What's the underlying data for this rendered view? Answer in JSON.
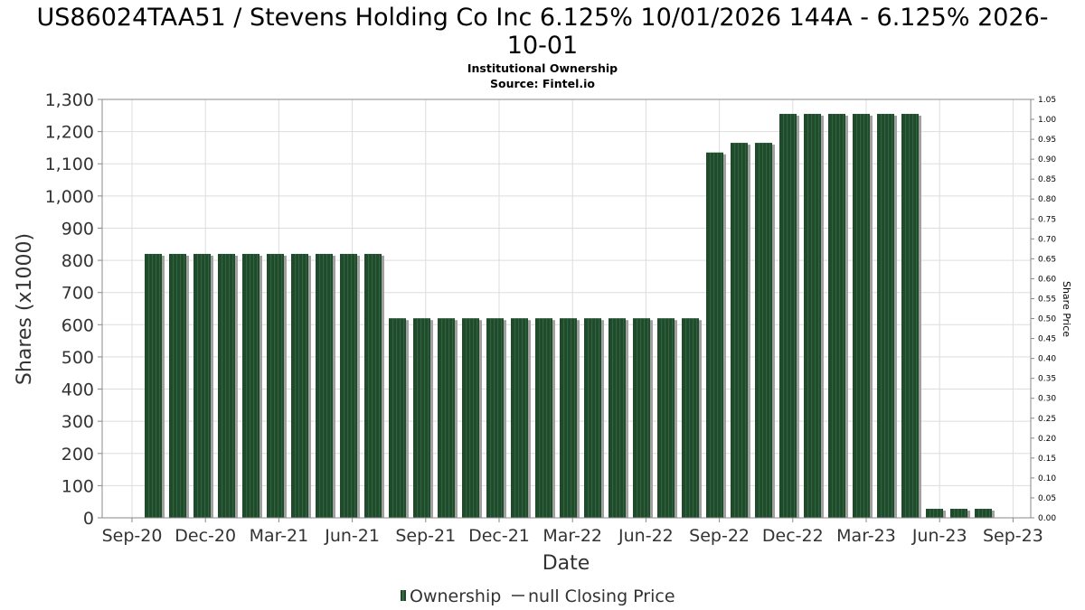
{
  "title_line1": "US86024TAA51 / Stevens Holding Co Inc 6.125% 10/01/2026 144A - 6.125% 2026-",
  "title_line2": "10-01",
  "subtitle_line1": "Institutional Ownership",
  "subtitle_line2": "Source: Fintel.io",
  "legend": {
    "ownership": "Ownership",
    "price": "null Closing Price"
  },
  "colors": {
    "bar": "#1f4a2b",
    "bar_highlight": "#3d7a4e",
    "bar_shadow": "#a0a0a0",
    "grid": "#dddddd",
    "frame": "#888888"
  },
  "chart_data": {
    "type": "bar",
    "xlabel": "Date",
    "ylabel": "Shares (x1000)",
    "y2label": "Share Price",
    "ylim": [
      0,
      1300
    ],
    "y2lim": [
      0,
      1.05
    ],
    "yticks": [
      0,
      100,
      200,
      300,
      400,
      500,
      600,
      700,
      800,
      900,
      1000,
      1100,
      1200,
      1300
    ],
    "ytick_labels": [
      "0",
      "100",
      "200",
      "300",
      "400",
      "500",
      "600",
      "700",
      "800",
      "900",
      "1,000",
      "1,100",
      "1,200",
      "1,300"
    ],
    "y2ticks": [
      0.0,
      0.05,
      0.1,
      0.15,
      0.2,
      0.25,
      0.3,
      0.35,
      0.4,
      0.45,
      0.5,
      0.55,
      0.6,
      0.65,
      0.7,
      0.75,
      0.8,
      0.85,
      0.9,
      0.95,
      1.0,
      1.05
    ],
    "y2tick_labels": [
      "0.00",
      "0.05",
      "0.10",
      "0.15",
      "0.20",
      "0.25",
      "0.30",
      "0.35",
      "0.40",
      "0.45",
      "0.50",
      "0.55",
      "0.60",
      "0.65",
      "0.70",
      "0.75",
      "0.80",
      "0.85",
      "0.90",
      "0.95",
      "1.00",
      "1.05"
    ],
    "xtick_labels": [
      "Sep-20",
      "Dec-20",
      "Mar-21",
      "Jun-21",
      "Sep-21",
      "Dec-21",
      "Mar-22",
      "Jun-22",
      "Sep-22",
      "Dec-22",
      "Mar-23",
      "Jun-23",
      "Sep-23"
    ],
    "series": [
      {
        "name": "Ownership",
        "values": [
          820,
          820,
          820,
          820,
          820,
          820,
          820,
          820,
          820,
          820,
          620,
          620,
          620,
          620,
          620,
          620,
          620,
          620,
          620,
          620,
          620,
          620,
          620,
          1135,
          1165,
          1165,
          1255,
          1255,
          1255,
          1255,
          1255,
          1255,
          28,
          28,
          28
        ]
      }
    ],
    "grid": true,
    "legend_position": "bottom-center"
  }
}
